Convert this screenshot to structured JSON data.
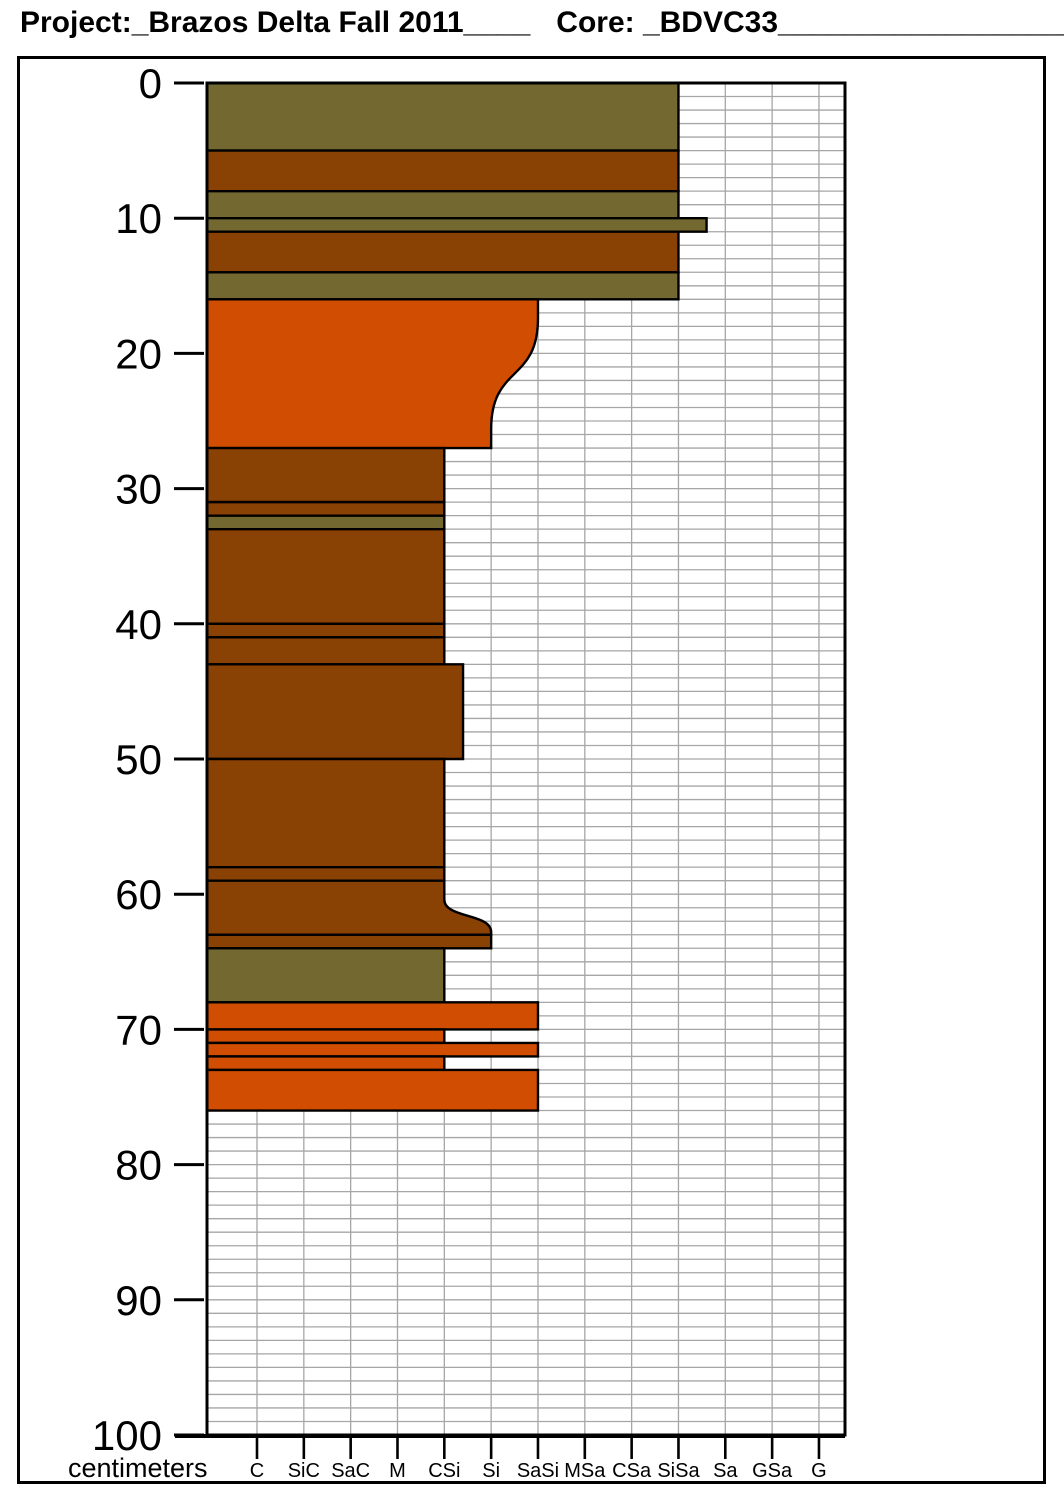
{
  "header": {
    "project": "Project:_Brazos Delta Fall 2011____",
    "core": "Core: _BDVC33___________________"
  },
  "chart_data": {
    "type": "stratigraphic_column",
    "title": "Project: Brazos Delta Fall 2011 — Core: BDVC33",
    "ylabel": "centimeters",
    "ylim": [
      0,
      100
    ],
    "y_ticks": [
      0,
      10,
      20,
      30,
      40,
      50,
      60,
      70,
      80,
      90,
      100
    ],
    "grain_size_categories": [
      "C",
      "SiC",
      "SaC",
      "M",
      "CSi",
      "Si",
      "SaSi",
      "MSa",
      "CSa",
      "SiSa",
      "Sa",
      "GSa",
      "G"
    ],
    "colors": {
      "olive": "#746831",
      "brown": "#8A4104",
      "orange": "#D14D01",
      "grid": "#A6A6A6",
      "axis": "#000000"
    },
    "grid": true,
    "legend": "none",
    "layers": [
      {
        "top_cm": 0,
        "base_cm": 5,
        "lithology": "olive",
        "grain_size": "SiSa",
        "gs_index": 9
      },
      {
        "top_cm": 5,
        "base_cm": 8,
        "lithology": "brown",
        "grain_size": "SiSa",
        "gs_index": 9
      },
      {
        "top_cm": 8,
        "base_cm": 10,
        "lithology": "olive",
        "grain_size": "SiSa",
        "gs_index": 9
      },
      {
        "top_cm": 10,
        "base_cm": 11,
        "lithology": "olive",
        "grain_size": "SiSa+",
        "gs_index": 9.6
      },
      {
        "top_cm": 11,
        "base_cm": 14,
        "lithology": "brown",
        "grain_size": "SiSa",
        "gs_index": 9
      },
      {
        "top_cm": 14,
        "base_cm": 16,
        "lithology": "olive",
        "grain_size": "SiSa",
        "gs_index": 9
      },
      {
        "top_cm": 16,
        "base_cm": 27,
        "lithology": "orange",
        "grain_size": "SaSi",
        "gs_index": 6,
        "grain_size_base": "Si",
        "gs_index_base": 5,
        "curve_top_cm": 17.4,
        "curve_base_cm": 25.6,
        "base_contact": "gradational-curve"
      },
      {
        "top_cm": 27,
        "base_cm": 31,
        "lithology": "brown",
        "grain_size": "CSi",
        "gs_index": 4
      },
      {
        "top_cm": 31,
        "base_cm": 32,
        "lithology": "brown",
        "grain_size": "CSi",
        "gs_index": 4
      },
      {
        "top_cm": 32,
        "base_cm": 33,
        "lithology": "olive",
        "grain_size": "CSi",
        "gs_index": 4
      },
      {
        "top_cm": 33,
        "base_cm": 40,
        "lithology": "brown",
        "grain_size": "CSi",
        "gs_index": 4
      },
      {
        "top_cm": 40,
        "base_cm": 41,
        "lithology": "brown",
        "grain_size": "CSi",
        "gs_index": 4
      },
      {
        "top_cm": 41,
        "base_cm": 43,
        "lithology": "brown",
        "grain_size": "CSi",
        "gs_index": 4
      },
      {
        "top_cm": 43,
        "base_cm": 50,
        "lithology": "brown",
        "grain_size": "CSi+",
        "gs_index": 4.4
      },
      {
        "top_cm": 50,
        "base_cm": 58,
        "lithology": "brown",
        "grain_size": "CSi",
        "gs_index": 4
      },
      {
        "top_cm": 58,
        "base_cm": 59,
        "lithology": "brown",
        "grain_size": "CSi",
        "gs_index": 4
      },
      {
        "top_cm": 59,
        "base_cm": 63,
        "lithology": "brown",
        "grain_size": "CSi",
        "gs_index": 4,
        "grain_size_base": "Si",
        "gs_index_base": 5,
        "curve_top_cm": 60.4,
        "curve_base_cm": 62.8,
        "base_contact": "gradational-curve"
      },
      {
        "top_cm": 63,
        "base_cm": 64,
        "lithology": "brown",
        "grain_size": "Si",
        "gs_index": 5
      },
      {
        "top_cm": 64,
        "base_cm": 68,
        "lithology": "olive",
        "grain_size": "CSi",
        "gs_index": 4
      },
      {
        "top_cm": 68,
        "base_cm": 70,
        "lithology": "orange",
        "grain_size": "SaSi",
        "gs_index": 6
      },
      {
        "top_cm": 70,
        "base_cm": 71,
        "lithology": "orange",
        "grain_size": "CSi",
        "gs_index": 4
      },
      {
        "top_cm": 71,
        "base_cm": 72,
        "lithology": "orange",
        "grain_size": "SaSi",
        "gs_index": 6
      },
      {
        "top_cm": 72,
        "base_cm": 73,
        "lithology": "orange",
        "grain_size": "CSi",
        "gs_index": 4
      },
      {
        "top_cm": 73,
        "base_cm": 76,
        "lithology": "orange",
        "grain_size": "SaSi",
        "gs_index": 6
      }
    ]
  }
}
